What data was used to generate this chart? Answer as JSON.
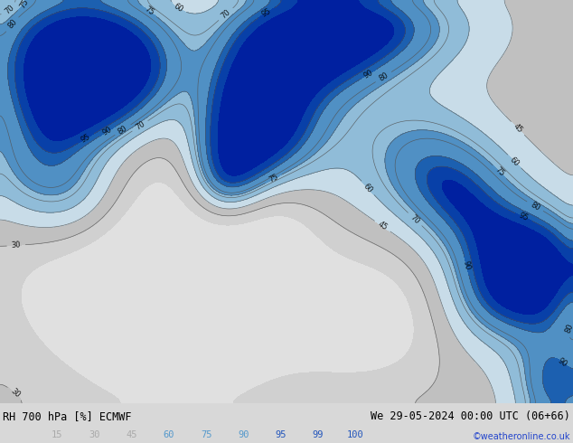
{
  "title_left": "RH 700 hPa [%] ECMWF",
  "title_right": "We 29-05-2024 00:00 UTC (06+66)",
  "copyright": "©weatheronline.co.uk",
  "colorbar_levels": [
    15,
    30,
    45,
    60,
    75,
    90,
    95,
    99,
    100
  ],
  "fill_levels": [
    0,
    15,
    30,
    45,
    60,
    75,
    90,
    95,
    99,
    101
  ],
  "fill_colors": [
    "#e0e0e0",
    "#d0d0d0",
    "#c0c0c0",
    "#c8dce8",
    "#90bcd8",
    "#5090c4",
    "#1c60b0",
    "#0840a8",
    "#0020a0"
  ],
  "contour_levels": [
    30,
    45,
    60,
    70,
    75,
    80,
    90,
    95
  ],
  "coastline_color": "#00bb00",
  "contour_color": "#505050",
  "label_fontsize": 6.0,
  "bg_color": "#d8d8d8",
  "map_bg": "#d8d8d8",
  "bottom_bg": "#c8c8c8",
  "fig_width": 6.34,
  "fig_height": 4.9,
  "dpi": 100,
  "lon_min": -30,
  "lon_max": 42,
  "lat_min": 28,
  "lat_max": 73,
  "label_colors": [
    "#aaaaaa",
    "#aaaaaa",
    "#aaaaaa",
    "#5599cc",
    "#5599cc",
    "#5599cc",
    "#2255bb",
    "#2255bb",
    "#2255bb"
  ]
}
